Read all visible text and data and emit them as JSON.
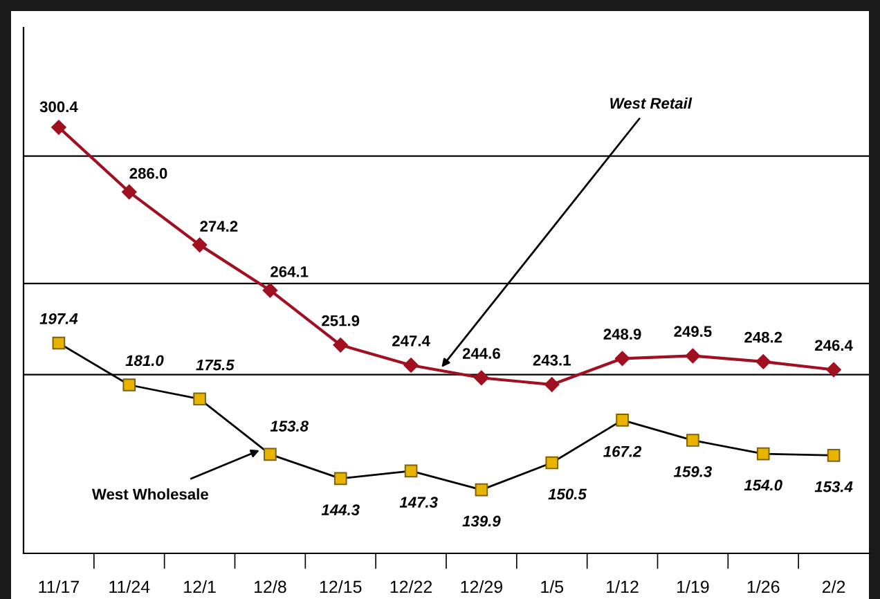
{
  "chart_data": {
    "type": "line",
    "categories": [
      "11/17",
      "11/24",
      "12/1",
      "12/8",
      "12/15",
      "12/22",
      "12/29",
      "1/5",
      "1/12",
      "1/19",
      "1/26",
      "2/2"
    ],
    "series": [
      {
        "name": "West Retail",
        "color": "#a01020",
        "marker": "diamond",
        "values": [
          300.4,
          286.0,
          274.2,
          264.1,
          251.9,
          247.4,
          244.6,
          243.1,
          248.9,
          249.5,
          248.2,
          246.4
        ],
        "value_labels": [
          "300.4",
          "286.0",
          "274.2",
          "264.1",
          "251.9",
          "247.4",
          "244.6",
          "243.1",
          "248.9",
          "249.5",
          "248.2",
          "246.4"
        ]
      },
      {
        "name": "West Wholesale",
        "color": "#000000",
        "marker": "square",
        "axis": "y2",
        "values": [
          197.4,
          181.0,
          175.5,
          153.8,
          144.3,
          147.3,
          139.9,
          150.5,
          167.2,
          159.3,
          154.0,
          153.4
        ],
        "value_labels": [
          "197.4",
          "181.0",
          "175.5",
          "153.8",
          "144.3",
          "147.3",
          "139.9",
          "150.5",
          "167.2",
          "159.3",
          "154.0",
          "153.4"
        ]
      }
    ],
    "ylim": [
      205.5,
      322.6
    ],
    "yticks": [
      {
        "value": 294,
        "label": null
      },
      {
        "value": 265.6,
        "label": null
      },
      {
        "value": 245.3,
        "label": null
      }
    ],
    "y2lim": [
      115,
      321
    ],
    "grid": "y",
    "tick_labels": "x",
    "legend": false,
    "line_style": "solid"
  }
}
